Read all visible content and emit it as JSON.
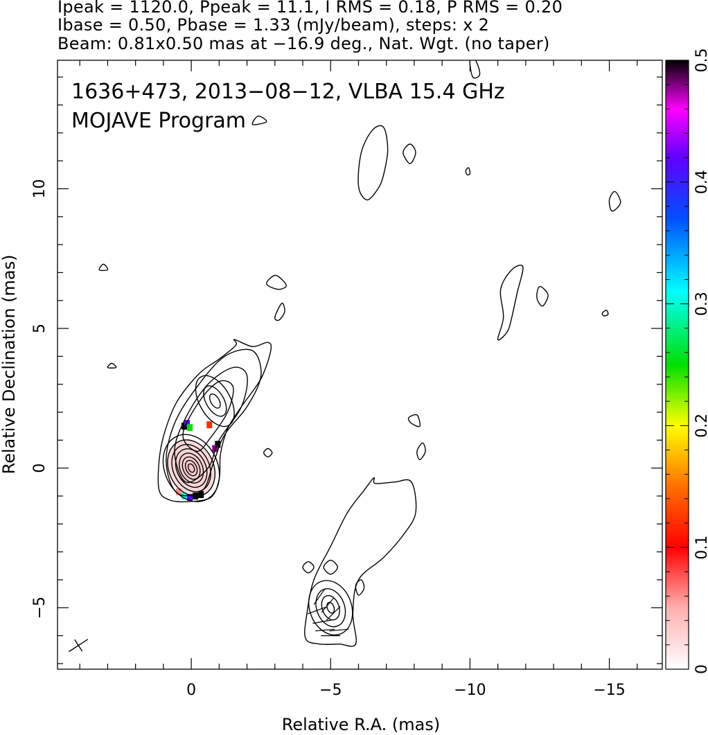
{
  "header": {
    "line1": "Ipeak = 1120.0, Ppeak = 11.1, I RMS = 0.18, P RMS = 0.20",
    "line2": "Ibase = 0.50, Pbase = 1.33 (mJy/beam), steps: x 2",
    "line3": "Beam: 0.81x0.50 mas at −16.9 deg., Nat. Wgt. (no taper)"
  },
  "chart_data": {
    "type": "heatmap",
    "annotation_line1": "1636+473, 2013−08−12, VLBA 15.4 GHz",
    "annotation_line2": "MOJAVE Program",
    "xlabel": "Relative R.A. (mas)",
    "ylabel": "Relative Declination (mas)",
    "xlim": [
      4.8,
      -16.9
    ],
    "ylim": [
      -7.2,
      14.6
    ],
    "x_ticks": [
      0,
      -5,
      -10,
      -15
    ],
    "x_tick_labels": [
      "0",
      "−5",
      "−10",
      "−15"
    ],
    "y_ticks": [
      -5,
      0,
      5,
      10
    ],
    "y_tick_labels": [
      "−5",
      "0",
      "5",
      "10"
    ],
    "colorbar": {
      "min": 0,
      "max": 0.5,
      "ticks": [
        0,
        0.1,
        0.2,
        0.3,
        0.4,
        0.5
      ],
      "tick_labels": [
        "0",
        "0.1",
        "0.2",
        "0.3",
        "0.4",
        "0.5"
      ]
    },
    "beam": {
      "major_mas": 0.81,
      "minor_mas": 0.5,
      "pa_deg": -16.9
    },
    "contour_groups": [
      {
        "name": "core",
        "cx": 0.0,
        "cy": 0.0,
        "levels": [
          {
            "rx": 0.95,
            "ry": 1.25,
            "rot": -25
          },
          {
            "rx": 0.8,
            "ry": 1.05,
            "rot": -25
          },
          {
            "rx": 0.65,
            "ry": 0.88,
            "rot": -25
          },
          {
            "rx": 0.52,
            "ry": 0.72,
            "rot": -25
          },
          {
            "rx": 0.4,
            "ry": 0.56,
            "rot": -25
          },
          {
            "rx": 0.29,
            "ry": 0.42,
            "rot": -25
          },
          {
            "rx": 0.19,
            "ry": 0.29,
            "rot": -25
          },
          {
            "rx": 0.1,
            "ry": 0.16,
            "rot": -25
          }
        ]
      },
      {
        "name": "jet-knot",
        "cx": -0.85,
        "cy": 2.4,
        "levels": [
          {
            "rx": 0.55,
            "ry": 1.0,
            "rot": -30
          },
          {
            "rx": 0.32,
            "ry": 0.6,
            "rot": -30
          },
          {
            "rx": 0.15,
            "ry": 0.28,
            "rot": -30
          }
        ]
      },
      {
        "name": "southern-component",
        "cx": -5.0,
        "cy": -5.0,
        "levels": [
          {
            "rx": 0.75,
            "ry": 1.0,
            "rot": -20
          },
          {
            "rx": 0.5,
            "ry": 0.7,
            "rot": -20
          },
          {
            "rx": 0.3,
            "ry": 0.45,
            "rot": -20
          },
          {
            "rx": 0.12,
            "ry": 0.2,
            "rot": -20
          }
        ]
      }
    ],
    "outer_contours": [
      {
        "name": "core-jet-envelope",
        "points": [
          [
            1.15,
            -0.8
          ],
          [
            0.75,
            -1.15
          ],
          [
            0.1,
            -1.2
          ],
          [
            -0.7,
            -1.05
          ],
          [
            -1.0,
            -0.4
          ],
          [
            -1.05,
            0.5
          ],
          [
            -1.3,
            1.4
          ],
          [
            -1.8,
            2.2
          ],
          [
            -2.5,
            3.2
          ],
          [
            -2.85,
            4.2
          ],
          [
            -2.75,
            4.5
          ],
          [
            -2.2,
            4.35
          ],
          [
            -1.55,
            4.6
          ],
          [
            -1.6,
            4.4
          ],
          [
            -1.0,
            3.9
          ],
          [
            -0.3,
            3.4
          ],
          [
            0.5,
            2.4
          ],
          [
            0.95,
            1.3
          ],
          [
            1.15,
            0.3
          ]
        ]
      },
      {
        "name": "jet-inner-1",
        "points": [
          [
            0.9,
            0.2
          ],
          [
            0.6,
            1.6
          ],
          [
            -0.2,
            2.9
          ],
          [
            -1.2,
            4.0
          ],
          [
            -2.2,
            4.2
          ],
          [
            -2.5,
            3.3
          ],
          [
            -2.0,
            2.2
          ],
          [
            -1.2,
            1.2
          ],
          [
            -0.8,
            0.2
          ],
          [
            -0.4,
            -0.8
          ],
          [
            0.5,
            -0.9
          ]
        ]
      },
      {
        "name": "jet-inner-2",
        "points": [
          [
            0.6,
            0.6
          ],
          [
            0.2,
            1.8
          ],
          [
            -0.6,
            3.0
          ],
          [
            -1.5,
            3.6
          ],
          [
            -2.0,
            3.3
          ],
          [
            -1.8,
            2.2
          ],
          [
            -1.0,
            1.0
          ],
          [
            -0.6,
            0.0
          ],
          [
            0.2,
            -0.5
          ]
        ]
      },
      {
        "name": "jet-inner-3",
        "points": [
          [
            0.3,
            1.2
          ],
          [
            -0.3,
            2.4
          ],
          [
            -1.0,
            3.1
          ],
          [
            -1.5,
            2.9
          ],
          [
            -1.3,
            2.0
          ],
          [
            -0.7,
            1.1
          ],
          [
            -0.2,
            0.6
          ]
        ]
      },
      {
        "name": "southern-envelope",
        "points": [
          [
            -4.1,
            -6.1
          ],
          [
            -4.15,
            -5.2
          ],
          [
            -4.4,
            -4.0
          ],
          [
            -5.0,
            -2.8
          ],
          [
            -5.6,
            -1.6
          ],
          [
            -6.2,
            -0.8
          ],
          [
            -6.55,
            -0.35
          ],
          [
            -6.6,
            -0.55
          ],
          [
            -7.3,
            -0.5
          ],
          [
            -7.9,
            -0.5
          ],
          [
            -8.05,
            -1.6
          ],
          [
            -7.6,
            -2.4
          ],
          [
            -6.9,
            -3.2
          ],
          [
            -6.0,
            -4.0
          ],
          [
            -5.8,
            -5.2
          ],
          [
            -5.9,
            -6.3
          ],
          [
            -5.3,
            -6.3
          ],
          [
            -4.6,
            -6.3
          ]
        ]
      },
      {
        "name": "northeast-blob",
        "points": [
          [
            -6.0,
            10.1
          ],
          [
            -6.1,
            11.3
          ],
          [
            -6.5,
            12.1
          ],
          [
            -6.9,
            12.2
          ],
          [
            -7.05,
            11.4
          ],
          [
            -6.9,
            10.5
          ],
          [
            -6.7,
            10.0
          ],
          [
            -6.3,
            9.6
          ]
        ]
      },
      {
        "name": "northeast-blob-2",
        "points": [
          [
            -7.6,
            11.3
          ],
          [
            -7.85,
            11.6
          ],
          [
            -8.05,
            11.3
          ],
          [
            -7.85,
            10.9
          ]
        ]
      },
      {
        "name": "east-blob",
        "points": [
          [
            -11.0,
            4.6
          ],
          [
            -11.2,
            5.4
          ],
          [
            -11.1,
            6.4
          ],
          [
            -11.5,
            7.1
          ],
          [
            -11.9,
            7.2
          ],
          [
            -11.7,
            6.3
          ],
          [
            -11.5,
            5.4
          ],
          [
            -11.35,
            4.9
          ]
        ]
      },
      {
        "name": "east-blob-2",
        "points": [
          [
            -12.5,
            6.5
          ],
          [
            -12.8,
            6.2
          ],
          [
            -12.6,
            5.8
          ],
          [
            -12.4,
            6.1
          ]
        ]
      },
      {
        "name": "far-east-blob",
        "points": [
          [
            -15.1,
            9.2
          ],
          [
            -15.4,
            9.5
          ],
          [
            -15.2,
            9.9
          ],
          [
            -15.0,
            9.6
          ]
        ]
      },
      {
        "name": "mid-blob-1",
        "points": [
          [
            -2.7,
            6.6
          ],
          [
            -3.0,
            6.9
          ],
          [
            -3.3,
            6.7
          ],
          [
            -3.4,
            6.5
          ],
          [
            -3.1,
            6.4
          ]
        ]
      },
      {
        "name": "mid-blob-2",
        "points": [
          [
            -3.0,
            5.4
          ],
          [
            -3.25,
            5.9
          ],
          [
            -3.35,
            5.6
          ],
          [
            -3.15,
            5.3
          ]
        ]
      },
      {
        "name": "mid-blob-3",
        "points": [
          [
            -7.8,
            1.8
          ],
          [
            -8.1,
            1.9
          ],
          [
            -8.2,
            1.5
          ],
          [
            -7.9,
            1.6
          ]
        ]
      },
      {
        "name": "mid-blob-4",
        "points": [
          [
            -8.1,
            0.6
          ],
          [
            -8.3,
            0.9
          ],
          [
            -8.4,
            0.6
          ],
          [
            -8.2,
            0.3
          ]
        ]
      },
      {
        "name": "small-ring-1",
        "points": [
          [
            -2.6,
            0.55
          ],
          [
            -2.75,
            0.7
          ],
          [
            -2.9,
            0.55
          ],
          [
            -2.75,
            0.4
          ]
        ]
      },
      {
        "name": "small-ring-2",
        "points": [
          [
            -4.0,
            -3.55
          ],
          [
            -4.2,
            -3.35
          ],
          [
            -4.4,
            -3.55
          ],
          [
            -4.2,
            -3.75
          ]
        ]
      },
      {
        "name": "small-ring-3",
        "points": [
          [
            -4.75,
            -3.55
          ],
          [
            -5.0,
            -3.3
          ],
          [
            -5.25,
            -3.55
          ],
          [
            -5.0,
            -3.8
          ]
        ]
      },
      {
        "name": "small-ring-4",
        "points": [
          [
            -5.9,
            -4.2
          ],
          [
            -6.1,
            -4.0
          ],
          [
            -6.2,
            -4.3
          ],
          [
            -6.0,
            -4.55
          ]
        ]
      },
      {
        "name": "tiny-1",
        "points": [
          [
            -14.75,
            5.55
          ],
          [
            -14.9,
            5.65
          ],
          [
            -14.95,
            5.5
          ],
          [
            -14.8,
            5.45
          ]
        ]
      },
      {
        "name": "tiny-2",
        "points": [
          [
            -9.85,
            10.65
          ],
          [
            -9.95,
            10.75
          ],
          [
            -10.0,
            10.55
          ],
          [
            -9.9,
            10.5
          ]
        ]
      },
      {
        "name": "tiny-3",
        "points": [
          [
            -10.0,
            14.6
          ],
          [
            -10.1,
            14.0
          ],
          [
            -10.35,
            14.1
          ],
          [
            -10.2,
            14.6
          ]
        ]
      },
      {
        "name": "tiny-4",
        "points": [
          [
            3.3,
            7.1
          ],
          [
            3.15,
            7.3
          ],
          [
            3.0,
            7.1
          ]
        ]
      },
      {
        "name": "tiny-5",
        "points": [
          [
            3.0,
            3.6
          ],
          [
            2.85,
            3.75
          ],
          [
            2.7,
            3.6
          ]
        ]
      },
      {
        "name": "tiny-6",
        "points": [
          [
            -2.2,
            12.3
          ],
          [
            -2.4,
            12.6
          ],
          [
            -2.7,
            12.4
          ]
        ]
      }
    ],
    "polarization_pixels": [
      {
        "x": 0.25,
        "y": 1.5,
        "value": 0.5
      },
      {
        "x": 0.15,
        "y": 1.6,
        "value": 0.42
      },
      {
        "x": 0.05,
        "y": 1.45,
        "value": 0.25
      },
      {
        "x": -0.65,
        "y": 1.55,
        "value": 0.12
      },
      {
        "x": -0.95,
        "y": 0.85,
        "value": 0.5
      },
      {
        "x": -0.85,
        "y": 0.7,
        "value": 0.48
      },
      {
        "x": 0.45,
        "y": -0.85,
        "value": 0.06
      },
      {
        "x": 0.25,
        "y": -1.0,
        "value": 0.3
      },
      {
        "x": 0.05,
        "y": -1.05,
        "value": 0.42
      },
      {
        "x": -0.15,
        "y": -1.0,
        "value": 0.5
      },
      {
        "x": -0.35,
        "y": -0.95,
        "value": 0.5
      }
    ],
    "polarization_vectors": [
      {
        "x": -4.6,
        "y": -4.6,
        "angle": 55
      },
      {
        "x": -4.9,
        "y": -4.9,
        "angle": 50
      },
      {
        "x": -5.1,
        "y": -5.2,
        "angle": 45
      },
      {
        "x": -4.7,
        "y": -5.5,
        "angle": 10
      },
      {
        "x": -4.8,
        "y": -5.8,
        "angle": 5
      },
      {
        "x": -5.0,
        "y": -6.0,
        "angle": 0
      },
      {
        "x": -5.3,
        "y": -5.8,
        "angle": 5
      },
      {
        "x": -4.5,
        "y": -5.1,
        "angle": 20
      }
    ]
  }
}
